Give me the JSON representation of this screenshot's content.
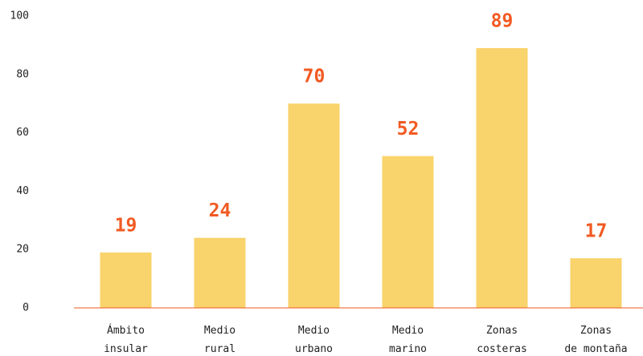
{
  "chart_data": {
    "type": "bar",
    "categories": [
      "Ámbito\ninsular",
      "Medio\nrural",
      "Medio\nurbano",
      "Medio\nmarino",
      "Zonas\ncosteras",
      "Zonas\nde montaña"
    ],
    "values": [
      19,
      24,
      70,
      52,
      89,
      17
    ],
    "color": "#f9d36b",
    "label_color": "#f15a22",
    "axis_color": "#f15a22",
    "ylim": [
      0,
      100
    ],
    "yticks": [
      0,
      20,
      40,
      60,
      80,
      100
    ],
    "grid": false
  }
}
